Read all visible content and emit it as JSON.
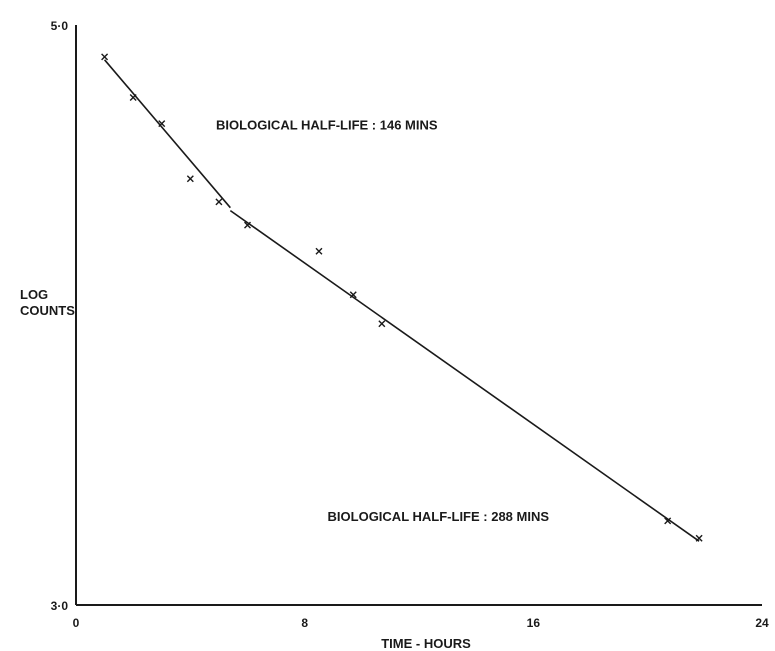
{
  "chart_data": {
    "type": "scatter",
    "title": "",
    "xlabel": "TIME - HOURS",
    "ylabel": [
      "LOG",
      "COUNTS"
    ],
    "xlim": [
      0,
      24
    ],
    "ylim": [
      3.0,
      5.0
    ],
    "x_ticks": [
      {
        "value": 0,
        "label": "0"
      },
      {
        "value": 8,
        "label": "8"
      },
      {
        "value": 16,
        "label": "16"
      },
      {
        "value": 24,
        "label": "24"
      }
    ],
    "y_ticks": [
      {
        "value": 3.0,
        "label": "3·0"
      },
      {
        "value": 5.0,
        "label": "5·0"
      }
    ],
    "grid": false,
    "legend": "none",
    "points": [
      {
        "x": 1.0,
        "y": 4.89
      },
      {
        "x": 2.0,
        "y": 4.75
      },
      {
        "x": 3.0,
        "y": 4.66
      },
      {
        "x": 4.0,
        "y": 4.47
      },
      {
        "x": 5.0,
        "y": 4.39
      },
      {
        "x": 6.0,
        "y": 4.31
      },
      {
        "x": 8.5,
        "y": 4.22
      },
      {
        "x": 9.7,
        "y": 4.07
      },
      {
        "x": 10.7,
        "y": 3.97
      },
      {
        "x": 20.7,
        "y": 3.29
      },
      {
        "x": 21.8,
        "y": 3.23
      }
    ],
    "fit_lines": [
      {
        "x": [
          1.0,
          5.4
        ],
        "y": [
          4.88,
          4.37
        ]
      },
      {
        "x": [
          5.4,
          21.8
        ],
        "y": [
          4.36,
          3.22
        ]
      }
    ],
    "annotations": [
      {
        "text": "BIOLOGICAL HALF-LIFE : 146 MINS",
        "x": 4.9,
        "y": 4.64
      },
      {
        "text": "BIOLOGICAL HALF-LIFE : 288 MINS",
        "x": 8.8,
        "y": 3.29
      }
    ]
  }
}
